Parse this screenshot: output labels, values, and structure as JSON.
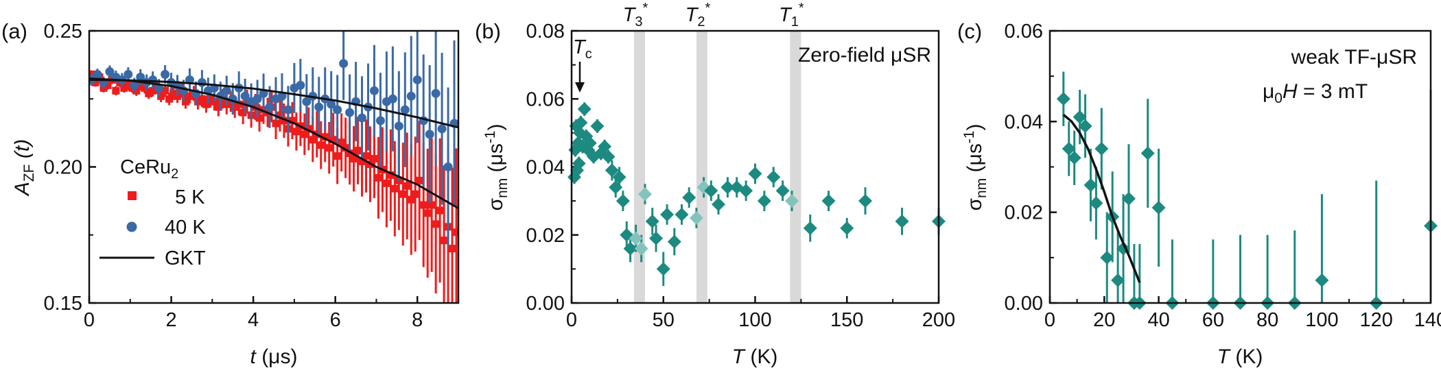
{
  "colors": {
    "red": "#ee1c1c",
    "blue": "#3a69a6",
    "teal": "#1c8a80",
    "teal_light": "#84c3bc",
    "band": "#d9d9d9",
    "black": "#111111"
  },
  "chart_data": [
    {
      "type": "scatter",
      "panel_label": "(a)",
      "xlabel": "t (μs)",
      "ylabel": "A_ZF (t)",
      "xlim": [
        0,
        9
      ],
      "ylim": [
        0.15,
        0.25
      ],
      "xticks": [
        "0",
        "2",
        "4",
        "6",
        "8"
      ],
      "yticks": [
        "0.15",
        "0.20",
        "0.25"
      ],
      "legend": {
        "title": "CeRu₂",
        "placement": "bottom-left"
      },
      "series": [
        {
          "name": "5 K",
          "marker": "square",
          "color": "#ee1c1c",
          "x": [
            0.05,
            0.15,
            0.25,
            0.35,
            0.45,
            0.55,
            0.65,
            0.75,
            0.85,
            0.95,
            1.05,
            1.15,
            1.25,
            1.35,
            1.45,
            1.55,
            1.65,
            1.75,
            1.85,
            1.95,
            2.05,
            2.15,
            2.25,
            2.35,
            2.45,
            2.55,
            2.65,
            2.75,
            2.85,
            2.95,
            3.05,
            3.15,
            3.25,
            3.35,
            3.45,
            3.55,
            3.65,
            3.75,
            3.85,
            3.95,
            4.05,
            4.15,
            4.25,
            4.35,
            4.45,
            4.55,
            4.65,
            4.75,
            4.85,
            4.95,
            5.05,
            5.15,
            5.25,
            5.35,
            5.45,
            5.55,
            5.65,
            5.75,
            5.85,
            5.95,
            6.05,
            6.15,
            6.25,
            6.35,
            6.45,
            6.55,
            6.65,
            6.75,
            6.85,
            6.95,
            7.05,
            7.15,
            7.25,
            7.35,
            7.45,
            7.55,
            7.65,
            7.75,
            7.85,
            7.95,
            8.05,
            8.15,
            8.25,
            8.35,
            8.45,
            8.55,
            8.65,
            8.75,
            8.85,
            8.95
          ],
          "y": [
            0.234,
            0.231,
            0.233,
            0.229,
            0.23,
            0.232,
            0.228,
            0.231,
            0.229,
            0.23,
            0.229,
            0.228,
            0.23,
            0.229,
            0.227,
            0.228,
            0.229,
            0.226,
            0.228,
            0.225,
            0.227,
            0.226,
            0.228,
            0.224,
            0.226,
            0.227,
            0.224,
            0.225,
            0.223,
            0.225,
            0.224,
            0.222,
            0.225,
            0.223,
            0.224,
            0.222,
            0.223,
            0.22,
            0.224,
            0.219,
            0.222,
            0.218,
            0.221,
            0.22,
            0.222,
            0.216,
            0.219,
            0.217,
            0.214,
            0.217,
            0.213,
            0.215,
            0.212,
            0.214,
            0.21,
            0.212,
            0.208,
            0.211,
            0.207,
            0.21,
            0.204,
            0.209,
            0.207,
            0.205,
            0.203,
            0.206,
            0.202,
            0.204,
            0.201,
            0.203,
            0.196,
            0.199,
            0.194,
            0.197,
            0.192,
            0.195,
            0.19,
            0.193,
            0.188,
            0.19,
            0.195,
            0.186,
            0.183,
            0.186,
            0.179,
            0.184,
            0.173,
            0.178,
            0.17,
            0.176
          ],
          "err": [
            0.0015,
            0.0015,
            0.0015,
            0.0016,
            0.0016,
            0.0016,
            0.0017,
            0.0017,
            0.0017,
            0.0018,
            0.0018,
            0.0019,
            0.0019,
            0.002,
            0.002,
            0.0021,
            0.0021,
            0.0022,
            0.0023,
            0.0023,
            0.0024,
            0.0025,
            0.0026,
            0.0026,
            0.0027,
            0.0028,
            0.0029,
            0.003,
            0.0031,
            0.0032,
            0.0033,
            0.0034,
            0.0036,
            0.0037,
            0.0038,
            0.004,
            0.0041,
            0.0043,
            0.0044,
            0.0046,
            0.0048,
            0.005,
            0.0052,
            0.0054,
            0.0056,
            0.0058,
            0.006,
            0.0063,
            0.0065,
            0.0068,
            0.007,
            0.0073,
            0.0076,
            0.0079,
            0.0082,
            0.0085,
            0.0088,
            0.0092,
            0.0095,
            0.0099,
            0.0103,
            0.0107,
            0.0111,
            0.0115,
            0.012,
            0.0124,
            0.0129,
            0.0134,
            0.0139,
            0.0145,
            0.015,
            0.0156,
            0.0162,
            0.0168,
            0.0175,
            0.0182,
            0.0189,
            0.0196,
            0.0203,
            0.0211,
            0.0219,
            0.0228,
            0.0237,
            0.0246,
            0.0255,
            0.0265,
            0.0275,
            0.0286,
            0.0297,
            0.0308
          ]
        },
        {
          "name": "40 K",
          "marker": "circle",
          "color": "#3a69a6",
          "x": [
            0.05,
            0.2,
            0.35,
            0.5,
            0.65,
            0.8,
            0.95,
            1.1,
            1.25,
            1.4,
            1.55,
            1.7,
            1.85,
            2.0,
            2.15,
            2.3,
            2.45,
            2.6,
            2.75,
            2.9,
            3.05,
            3.2,
            3.35,
            3.5,
            3.65,
            3.8,
            3.95,
            4.1,
            4.25,
            4.4,
            4.55,
            4.7,
            4.85,
            5.0,
            5.15,
            5.3,
            5.45,
            5.6,
            5.75,
            5.9,
            6.05,
            6.2,
            6.35,
            6.5,
            6.65,
            6.8,
            6.95,
            7.1,
            7.25,
            7.4,
            7.55,
            7.7,
            7.85,
            8.0,
            8.15,
            8.3,
            8.45,
            8.6,
            8.75,
            8.9
          ],
          "y": [
            0.232,
            0.234,
            0.231,
            0.235,
            0.233,
            0.232,
            0.234,
            0.23,
            0.233,
            0.231,
            0.232,
            0.229,
            0.234,
            0.231,
            0.23,
            0.228,
            0.232,
            0.227,
            0.231,
            0.228,
            0.229,
            0.226,
            0.228,
            0.225,
            0.229,
            0.226,
            0.224,
            0.225,
            0.227,
            0.222,
            0.225,
            0.226,
            0.221,
            0.229,
            0.23,
            0.224,
            0.226,
            0.222,
            0.225,
            0.223,
            0.221,
            0.238,
            0.22,
            0.224,
            0.218,
            0.222,
            0.228,
            0.217,
            0.224,
            0.225,
            0.215,
            0.221,
            0.226,
            0.232,
            0.217,
            0.212,
            0.227,
            0.214,
            0.2,
            0.216
          ],
          "err": [
            0.002,
            0.0021,
            0.0022,
            0.0023,
            0.0024,
            0.0025,
            0.0026,
            0.0027,
            0.0029,
            0.003,
            0.0031,
            0.0033,
            0.0034,
            0.0036,
            0.0038,
            0.004,
            0.0042,
            0.0044,
            0.0046,
            0.0048,
            0.005,
            0.0053,
            0.0055,
            0.0058,
            0.0061,
            0.0064,
            0.0067,
            0.007,
            0.0073,
            0.0077,
            0.008,
            0.0084,
            0.0088,
            0.0092,
            0.0097,
            0.0101,
            0.0106,
            0.0111,
            0.0116,
            0.0122,
            0.0128,
            0.0134,
            0.014,
            0.0146,
            0.0153,
            0.016,
            0.0168,
            0.0176,
            0.0184,
            0.0193,
            0.0202,
            0.0211,
            0.0221,
            0.0232,
            0.0243,
            0.0254,
            0.0266,
            0.0279,
            0.0292,
            0.0305
          ]
        },
        {
          "name": "GKT",
          "type": "line",
          "color": "#111111",
          "curves": [
            {
              "x": [
                0,
                1,
                2,
                3,
                4,
                5,
                6,
                7,
                8,
                9
              ],
              "y": [
                0.2325,
                0.2317,
                0.2297,
                0.2265,
                0.222,
                0.216,
                0.2085,
                0.2,
                0.1935,
                0.1848
              ]
            },
            {
              "x": [
                0,
                1,
                2,
                3,
                4,
                5,
                6,
                7,
                8,
                9
              ],
              "y": [
                0.232,
                0.2318,
                0.2312,
                0.2302,
                0.2288,
                0.2267,
                0.2244,
                0.2215,
                0.2182,
                0.2145
              ]
            }
          ]
        }
      ]
    },
    {
      "type": "scatter",
      "panel_label": "(b)",
      "xlabel": "T (K)",
      "ylabel": "σnm (μs-1)",
      "xlim": [
        0,
        200
      ],
      "ylim": [
        0,
        0.08
      ],
      "xticks": [
        "0",
        "50",
        "100",
        "150",
        "200"
      ],
      "yticks": [
        "0.00",
        "0.02",
        "0.04",
        "0.06",
        "0.08"
      ],
      "annotation": "Zero-field μSR",
      "tc_label": "Tc",
      "bands": [
        {
          "label": "T3*",
          "x": 37
        },
        {
          "label": "T2*",
          "x": 71
        },
        {
          "label": "T1*",
          "x": 122
        }
      ],
      "series": [
        {
          "name": "",
          "marker": "diamond",
          "color": "#1c8a80",
          "x": [
            1.5,
            2,
            2.5,
            3,
            3.5,
            4,
            4.5,
            5,
            6,
            7,
            8,
            9,
            10,
            12,
            14,
            16,
            18,
            20,
            22,
            24,
            26,
            28,
            30,
            32,
            35,
            38,
            40,
            44,
            46,
            50,
            52,
            56,
            60,
            64,
            68,
            72,
            76,
            80,
            85,
            90,
            95,
            100,
            105,
            110,
            115,
            120,
            130,
            140,
            150,
            160,
            180,
            200
          ],
          "y": [
            0.037,
            0.045,
            0.052,
            0.039,
            0.047,
            0.041,
            0.05,
            0.053,
            0.046,
            0.057,
            0.049,
            0.045,
            0.047,
            0.043,
            0.052,
            0.044,
            0.046,
            0.043,
            0.039,
            0.034,
            0.037,
            0.03,
            0.02,
            0.016,
            0.019,
            0.016,
            0.032,
            0.024,
            0.019,
            0.01,
            0.026,
            0.018,
            0.026,
            0.031,
            0.025,
            0.034,
            0.033,
            0.029,
            0.034,
            0.034,
            0.033,
            0.038,
            0.03,
            0.037,
            0.033,
            0.03,
            0.022,
            0.03,
            0.022,
            0.03,
            0.024,
            0.024
          ],
          "err": [
            0.002,
            0.002,
            0.002,
            0.002,
            0.002,
            0.002,
            0.002,
            0.002,
            0.002,
            0.002,
            0.002,
            0.002,
            0.002,
            0.002,
            0.002,
            0.002,
            0.002,
            0.002,
            0.003,
            0.003,
            0.003,
            0.003,
            0.004,
            0.004,
            0.004,
            0.004,
            0.003,
            0.004,
            0.004,
            0.005,
            0.003,
            0.004,
            0.003,
            0.003,
            0.003,
            0.003,
            0.003,
            0.003,
            0.003,
            0.003,
            0.003,
            0.003,
            0.003,
            0.003,
            0.003,
            0.003,
            0.004,
            0.003,
            0.003,
            0.004,
            0.004,
            0.004
          ]
        }
      ]
    },
    {
      "type": "scatter",
      "panel_label": "(c)",
      "xlabel": "T (K)",
      "ylabel": "σnm (μs-1)",
      "xlim": [
        0,
        140
      ],
      "ylim": [
        0,
        0.06
      ],
      "xticks": [
        "0",
        "20",
        "40",
        "60",
        "80",
        "100",
        "120",
        "140"
      ],
      "yticks": [
        "0.00",
        "0.02",
        "0.04",
        "0.06"
      ],
      "annotation_line1": "weak TF-μSR",
      "annotation_line2": "μ0H = 3 mT",
      "series": [
        {
          "name": "",
          "marker": "diamond",
          "color": "#1c8a80",
          "x": [
            5,
            7,
            9,
            11,
            13,
            15,
            17,
            19,
            21,
            23,
            25,
            27,
            29,
            31,
            33,
            36,
            40,
            45,
            60,
            70,
            80,
            90,
            100,
            120,
            140
          ],
          "y": [
            0.045,
            0.034,
            0.032,
            0.041,
            0.039,
            0.026,
            0.022,
            0.034,
            0.01,
            0.019,
            0.005,
            0.012,
            0.023,
            0.0,
            0.0,
            0.033,
            0.021,
            0.0,
            0.0,
            0.0,
            0.0,
            0.0,
            0.005,
            0.0,
            0.017
          ],
          "err": [
            0.006,
            0.006,
            0.006,
            0.006,
            0.007,
            0.008,
            0.008,
            0.009,
            0.01,
            0.01,
            0.011,
            0.012,
            0.012,
            0.013,
            0.013,
            0.012,
            0.013,
            0.014,
            0.014,
            0.015,
            0.015,
            0.016,
            0.019,
            0.027,
            0.03
          ]
        },
        {
          "name": "",
          "type": "line",
          "color": "#111111",
          "x": [
            5,
            8,
            11,
            14,
            17,
            20,
            23,
            26,
            29,
            32,
            33
          ],
          "y": [
            0.0415,
            0.04,
            0.0375,
            0.034,
            0.0295,
            0.0245,
            0.019,
            0.0145,
            0.0105,
            0.006,
            0.0045
          ]
        }
      ]
    }
  ]
}
